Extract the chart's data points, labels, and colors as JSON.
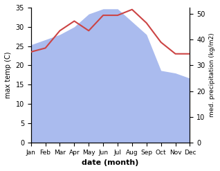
{
  "months": [
    "Jan",
    "Feb",
    "Mar",
    "Apr",
    "May",
    "Jun",
    "Jul",
    "Aug",
    "Sep",
    "Oct",
    "Nov",
    "Dec"
  ],
  "month_indices": [
    1,
    2,
    3,
    4,
    5,
    6,
    7,
    8,
    9,
    10,
    11,
    12
  ],
  "temperature": [
    23.5,
    24.5,
    29.0,
    31.5,
    29.0,
    33.0,
    33.0,
    34.5,
    31.0,
    26.0,
    23.0,
    23.0
  ],
  "rainfall": [
    38.0,
    40.0,
    42.0,
    45.0,
    50.0,
    52.0,
    52.0,
    47.0,
    42.0,
    28.0,
    27.0,
    25.0
  ],
  "temp_color": "#cc4444",
  "rain_color": "#aabbee",
  "xlim": [
    1,
    12
  ],
  "temp_ylim": [
    0,
    35
  ],
  "temp_yticks": [
    0,
    5,
    10,
    15,
    20,
    25,
    30,
    35
  ],
  "rain_ylim": [
    0,
    52.5
  ],
  "rain_yticks": [
    0,
    10,
    20,
    30,
    40,
    50
  ],
  "xlabel": "date (month)",
  "ylabel_left": "max temp (C)",
  "ylabel_right": "med. precipitation (kg/m2)",
  "background_color": "#ffffff"
}
